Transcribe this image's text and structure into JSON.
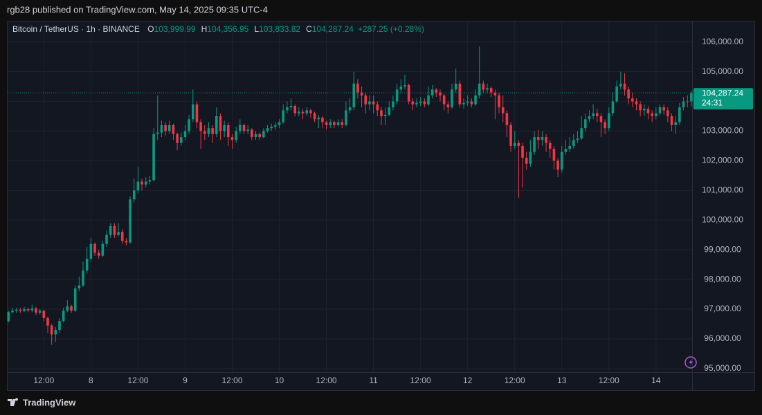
{
  "header": {
    "publisher_line": "rgb28 published on TradingView.com, May 14, 2025 09:35 UTC-4"
  },
  "chart_data": {
    "type": "candlestick",
    "symbol": "Bitcoin / TetherUS · 1h · BINANCE",
    "ohlc_legend": [
      {
        "key": "O",
        "value": "103,999.99"
      },
      {
        "key": "H",
        "value": "104,356.95"
      },
      {
        "key": "L",
        "value": "103,833.82"
      },
      {
        "key": "C",
        "value": "104,287.24"
      }
    ],
    "change": "+287.25 (+0.28%)",
    "countdown": "24:31",
    "up_color": "#089981",
    "down_color": "#f23645",
    "grid": true,
    "ylim": [
      94880,
      106600
    ],
    "yticks": [
      {
        "value": 106000,
        "label": "106,000.00"
      },
      {
        "value": 105000,
        "label": "105,000.00"
      },
      {
        "value": 104000,
        "label": "104,000.00"
      },
      {
        "value": 103000,
        "label": "103,000.00"
      },
      {
        "value": 102000,
        "label": "102,000.00"
      },
      {
        "value": 101000,
        "label": "101,000.00"
      },
      {
        "value": 100000,
        "label": "100,000.00"
      },
      {
        "value": 99000,
        "label": "99,000.00"
      },
      {
        "value": 98000,
        "label": "98,000.00"
      },
      {
        "value": 97000,
        "label": "97,000.00"
      },
      {
        "value": 96000,
        "label": "96,000.00"
      },
      {
        "value": 95000,
        "label": "95,000.00"
      }
    ],
    "categories": [
      null,
      null,
      null,
      null,
      null,
      null,
      null,
      null,
      null,
      "12:00",
      null,
      null,
      null,
      null,
      null,
      null,
      null,
      null,
      null,
      null,
      null,
      "8",
      null,
      null,
      null,
      null,
      null,
      null,
      null,
      null,
      null,
      null,
      null,
      "12:00",
      null,
      null,
      null,
      null,
      null,
      null,
      null,
      null,
      null,
      null,
      null,
      "9",
      null,
      null,
      null,
      null,
      null,
      null,
      null,
      null,
      null,
      null,
      null,
      "12:00",
      null,
      null,
      null,
      null,
      null,
      null,
      null,
      null,
      null,
      null,
      null,
      "10",
      null,
      null,
      null,
      null,
      null,
      null,
      null,
      null,
      null,
      null,
      null,
      "12:00",
      null,
      null,
      null,
      null,
      null,
      null,
      null,
      null,
      null,
      null,
      null,
      "11",
      null,
      null,
      null,
      null,
      null,
      null,
      null,
      null,
      null,
      null,
      null,
      "12:00",
      null,
      null,
      null,
      null,
      null,
      null,
      null,
      null,
      null,
      null,
      null,
      "12",
      null,
      null,
      null,
      null,
      null,
      null,
      null,
      null,
      null,
      null,
      null,
      "12:00",
      null,
      null,
      null,
      null,
      null,
      null,
      null,
      null,
      null,
      null,
      null,
      "13",
      null,
      null,
      null,
      null,
      null,
      null,
      null,
      null,
      null,
      null,
      null,
      "12:00",
      null,
      null,
      null,
      null,
      null,
      null,
      null,
      null,
      null,
      null,
      null,
      "14",
      null,
      null,
      null,
      null,
      null,
      null,
      null,
      null,
      null
    ],
    "open": [
      96600,
      96900,
      96950,
      96980,
      96940,
      97000,
      96960,
      97030,
      96880,
      96950,
      96700,
      96450,
      96150,
      96300,
      96600,
      96950,
      97100,
      96950,
      97700,
      97800,
      98300,
      98700,
      99200,
      98900,
      98800,
      99200,
      99500,
      99800,
      99500,
      99600,
      99300,
      99250,
      100700,
      101000,
      101300,
      101200,
      101300,
      101350,
      102900,
      102950,
      103200,
      103000,
      103200,
      102900,
      102600,
      102800,
      103000,
      103400,
      103900,
      103300,
      103000,
      102900,
      103100,
      102900,
      103500,
      103000,
      103200,
      102800,
      102700,
      103000,
      103200,
      103000,
      103050,
      102800,
      102900,
      102800,
      103000,
      103100,
      103150,
      103200,
      103300,
      103700,
      103800,
      103850,
      103600,
      103650,
      103600,
      103700,
      103600,
      103400,
      103450,
      103300,
      103200,
      103300,
      103200,
      103300,
      103200,
      103700,
      103800,
      104600,
      104300,
      104200,
      103900,
      104000,
      103900,
      103700,
      103500,
      103550,
      103800,
      104000,
      104400,
      104500,
      104550,
      104000,
      103900,
      103950,
      104000,
      103900,
      104200,
      104400,
      104300,
      104200,
      103900,
      103800,
      104400,
      104600,
      103900,
      103950,
      104000,
      103900,
      104200,
      104600,
      104400,
      104450,
      104300,
      104200,
      103800,
      103600,
      103200,
      102500,
      102600,
      102500,
      102100,
      101900,
      102300,
      102800,
      102700,
      102800,
      102600,
      102400,
      102000,
      101700,
      102300,
      102400,
      102500,
      102700,
      102750,
      103100,
      103400,
      103500,
      103600,
      103500,
      103300,
      103100,
      103600,
      104000,
      104500,
      104600,
      104400,
      104100,
      104000,
      103900,
      103700,
      103750,
      103600,
      103500,
      103600,
      103800,
      103700,
      103500,
      103200,
      103300,
      103800,
      104000,
      103999.99
    ],
    "high": [
      96950,
      97050,
      97050,
      97050,
      97080,
      97050,
      97150,
      97080,
      97000,
      96980,
      96750,
      96500,
      96400,
      96700,
      97050,
      97300,
      97150,
      97800,
      98100,
      98600,
      99100,
      99400,
      99250,
      99000,
      99300,
      99650,
      99900,
      99900,
      99900,
      99700,
      99400,
      100800,
      101400,
      101800,
      101400,
      101450,
      101500,
      103100,
      104200,
      103350,
      103300,
      103350,
      103250,
      102950,
      102950,
      103200,
      103550,
      104400,
      104000,
      103400,
      103200,
      103300,
      103200,
      103800,
      103600,
      103350,
      103300,
      102900,
      103150,
      103400,
      103250,
      103200,
      103100,
      103000,
      102950,
      103100,
      103200,
      103250,
      103300,
      103400,
      103900,
      104000,
      104100,
      103900,
      103800,
      103750,
      103800,
      103750,
      103650,
      103550,
      103500,
      103350,
      103400,
      103350,
      103400,
      103400,
      104000,
      104100,
      105000,
      104750,
      104500,
      104300,
      104200,
      104200,
      104000,
      103800,
      103800,
      104000,
      104200,
      104600,
      104750,
      104900,
      104600,
      104100,
      104100,
      104150,
      104100,
      104500,
      104550,
      104450,
      104400,
      104250,
      104000,
      104600,
      105100,
      104700,
      104100,
      104200,
      104100,
      104400,
      105850,
      104700,
      104600,
      104500,
      104400,
      104300,
      104200,
      103700,
      103300,
      103000,
      102700,
      102600,
      102300,
      102700,
      103000,
      103050,
      103000,
      102900,
      102700,
      102500,
      102100,
      102500,
      102700,
      102800,
      102900,
      103000,
      103500,
      103600,
      103700,
      103900,
      103750,
      103600,
      103400,
      103800,
      104300,
      104700,
      105000,
      104950,
      104500,
      104300,
      104100,
      104000,
      103900,
      103850,
      103700,
      103800,
      103900,
      103900,
      103800,
      103600,
      103500,
      103950,
      104150,
      104200,
      104356.95
    ],
    "low": [
      96550,
      96850,
      96880,
      96880,
      96900,
      96900,
      96900,
      96800,
      96820,
      96600,
      96200,
      95800,
      95900,
      96200,
      96550,
      96900,
      96880,
      96900,
      97600,
      97750,
      98200,
      98600,
      98800,
      98700,
      98750,
      99100,
      99400,
      99400,
      99450,
      99200,
      99150,
      99200,
      100600,
      100900,
      101000,
      101100,
      101200,
      101300,
      102700,
      102800,
      102850,
      102900,
      102700,
      102350,
      102500,
      102700,
      102900,
      103300,
      103100,
      102400,
      102700,
      102800,
      102600,
      102800,
      102700,
      102800,
      102500,
      102400,
      102600,
      102900,
      102900,
      102900,
      102700,
      102700,
      102700,
      102750,
      102950,
      103000,
      103050,
      103100,
      103250,
      103600,
      103700,
      103500,
      103500,
      103400,
      103500,
      103450,
      103300,
      103100,
      103100,
      103050,
      103100,
      103100,
      103150,
      103100,
      103150,
      103600,
      103700,
      104100,
      103800,
      103600,
      103700,
      103600,
      103500,
      103200,
      103200,
      103500,
      103700,
      103900,
      104300,
      104400,
      103900,
      103700,
      103800,
      103850,
      103800,
      103850,
      104100,
      104150,
      104000,
      103700,
      103600,
      103750,
      104300,
      103800,
      103750,
      103850,
      103800,
      103850,
      104100,
      104300,
      104300,
      104150,
      103400,
      103600,
      103300,
      102800,
      102300,
      102400,
      100750,
      101100,
      101700,
      101800,
      102200,
      102400,
      102500,
      102300,
      102100,
      101700,
      101450,
      101600,
      102200,
      102300,
      102400,
      102600,
      102700,
      103000,
      103300,
      103400,
      103300,
      102800,
      102900,
      103000,
      103500,
      103950,
      104400,
      104200,
      103900,
      103800,
      103700,
      103500,
      103500,
      103400,
      103300,
      103400,
      103500,
      103550,
      103300,
      103000,
      102900,
      103200,
      103700,
      103800,
      103833.82
    ],
    "close": [
      96900,
      96950,
      96980,
      96940,
      97000,
      96960,
      97030,
      96880,
      96950,
      96700,
      96450,
      96150,
      96300,
      96600,
      96950,
      97100,
      96950,
      97700,
      97800,
      98300,
      98700,
      99200,
      98900,
      98800,
      99200,
      99500,
      99800,
      99500,
      99600,
      99300,
      99250,
      100700,
      101000,
      101300,
      101200,
      101300,
      101350,
      102900,
      102950,
      103200,
      103000,
      103200,
      102900,
      102600,
      102800,
      103000,
      103400,
      103900,
      103300,
      103000,
      102900,
      103100,
      102900,
      103500,
      103000,
      103200,
      102800,
      102700,
      103000,
      103200,
      103000,
      103050,
      102800,
      102900,
      102800,
      103000,
      103100,
      103150,
      103200,
      103300,
      103700,
      103800,
      103850,
      103600,
      103650,
      103600,
      103700,
      103600,
      103400,
      103450,
      103300,
      103200,
      103300,
      103200,
      103300,
      103200,
      103700,
      103800,
      104600,
      104300,
      104200,
      103900,
      104000,
      103900,
      103700,
      103500,
      103550,
      103800,
      104000,
      104400,
      104500,
      104550,
      104000,
      103900,
      103950,
      104000,
      103900,
      104200,
      104400,
      104300,
      104200,
      103900,
      103800,
      104400,
      104600,
      103900,
      103950,
      104000,
      103900,
      104200,
      104600,
      104400,
      104450,
      104300,
      104200,
      103800,
      103600,
      103200,
      102500,
      102600,
      102500,
      102100,
      101900,
      102300,
      102800,
      102700,
      102800,
      102600,
      102400,
      102000,
      101700,
      102300,
      102400,
      102500,
      102700,
      102750,
      103100,
      103400,
      103500,
      103600,
      103500,
      103300,
      103100,
      103600,
      104000,
      104500,
      104600,
      104400,
      104100,
      104000,
      103900,
      103700,
      103750,
      103600,
      103500,
      103600,
      103800,
      103700,
      103500,
      103200,
      103300,
      103800,
      104000,
      103999.99,
      104287.24
    ]
  },
  "footer": {
    "brand": "TradingView"
  }
}
